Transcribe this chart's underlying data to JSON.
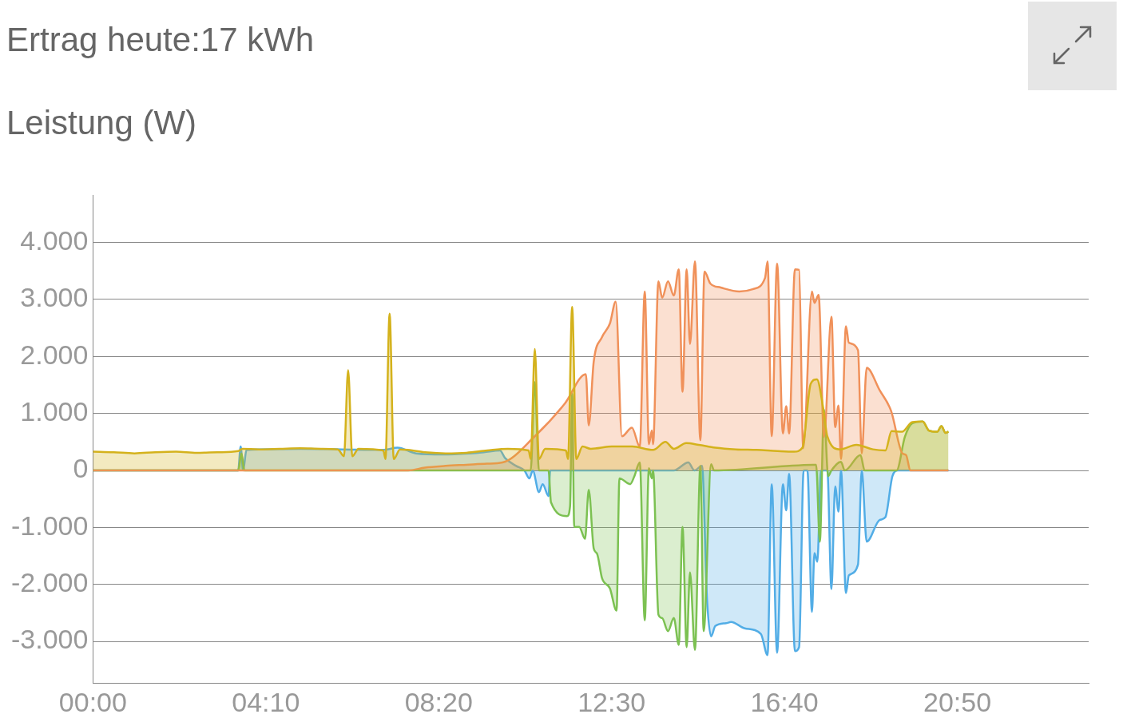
{
  "chart_data": {
    "type": "area",
    "title": "Ertrag heute:17 kWh",
    "subtitle": "Leistung (W)",
    "xlim": [
      0,
      24
    ],
    "xticks": [
      {
        "value": 0,
        "label": "00:00"
      },
      {
        "value": 4.1667,
        "label": "04:10"
      },
      {
        "value": 8.3333,
        "label": "08:20"
      },
      {
        "value": 12.5,
        "label": "12:30"
      },
      {
        "value": 16.6667,
        "label": "16:40"
      },
      {
        "value": 20.8333,
        "label": "20:50"
      }
    ],
    "ylim": [
      -3730,
      4830
    ],
    "yticks": [
      {
        "value": -3000,
        "label": "-3.000"
      },
      {
        "value": -2000,
        "label": "-2.000"
      },
      {
        "value": -1000,
        "label": "-1.000"
      },
      0,
      {
        "value": 1000,
        "label": "1.000"
      },
      {
        "value": 2000,
        "label": "2.000"
      },
      {
        "value": 3000,
        "label": "3.000"
      },
      {
        "value": 4000,
        "label": "4.000"
      }
    ],
    "grid": "y",
    "legend": false,
    "series": [
      {
        "color": "#d4b21c",
        "x": [
          0,
          0.5,
          1,
          1.5,
          2,
          2.5,
          3,
          3.5,
          3.6,
          4,
          4.5,
          5,
          5.5,
          5.9,
          6.05,
          6.15,
          6.25,
          6.4,
          7,
          7.05,
          7.15,
          7.25,
          7.4,
          8,
          8.5,
          9,
          9.5,
          10,
          10.5,
          10.55,
          10.65,
          10.75,
          10.9,
          11.4,
          11.45,
          11.55,
          11.65,
          11.8,
          12,
          12.5,
          13,
          13.5,
          13.8,
          14,
          14.3,
          14.6,
          15,
          15.5,
          16,
          16.5,
          16.9,
          17.1,
          17.3,
          17.45,
          17.6,
          17.7,
          18,
          18.4,
          18.8,
          19.1,
          19.25,
          19.5,
          19.75,
          20,
          20.15,
          20.35,
          20.45,
          20.55,
          20.62
        ],
        "values": [
          330,
          320,
          300,
          320,
          330,
          310,
          320,
          340,
          380,
          370,
          380,
          390,
          380,
          370,
          250,
          1760,
          250,
          380,
          350,
          200,
          2750,
          200,
          370,
          320,
          300,
          310,
          350,
          380,
          350,
          200,
          2130,
          200,
          380,
          350,
          200,
          2870,
          200,
          420,
          380,
          420,
          420,
          360,
          500,
          380,
          480,
          450,
          400,
          370,
          360,
          340,
          330,
          400,
          1520,
          1600,
          1100,
          600,
          370,
          450,
          370,
          350,
          690,
          680,
          850,
          860,
          700,
          680,
          780,
          660,
          680
        ]
      },
      {
        "color": "#f0915a",
        "x": [
          0,
          7.6,
          8,
          8.5,
          9,
          9.5,
          9.87,
          10.65,
          11.37,
          11.88,
          11.95,
          12.07,
          12.27,
          12.46,
          12.6,
          12.75,
          12.99,
          13.18,
          13.3,
          13.4,
          13.47,
          13.5,
          13.63,
          13.72,
          13.86,
          14.0,
          14.12,
          14.21,
          14.31,
          14.39,
          14.51,
          14.64,
          14.74,
          14.88,
          15.13,
          15.58,
          15.9,
          16.2,
          16.26,
          16.36,
          16.49,
          16.63,
          16.71,
          16.78,
          16.92,
          17.02,
          17.12,
          17.33,
          17.39,
          17.49,
          17.62,
          17.8,
          17.89,
          17.97,
          18.03,
          18.15,
          18.22,
          18.44,
          18.53,
          18.65,
          18.96,
          19.24,
          19.51,
          19.6,
          19.7,
          20.62
        ],
        "values": [
          0,
          0,
          50,
          80,
          100,
          120,
          140,
          600,
          1170,
          1690,
          790,
          1910,
          2340,
          2580,
          2960,
          600,
          750,
          420,
          3140,
          460,
          700,
          460,
          3320,
          3030,
          3320,
          3070,
          3530,
          1380,
          3530,
          2220,
          3670,
          530,
          3490,
          3280,
          3210,
          3140,
          3180,
          3380,
          3670,
          600,
          3630,
          650,
          1130,
          650,
          3530,
          3520,
          390,
          3140,
          2940,
          3080,
          590,
          2700,
          760,
          1140,
          200,
          2530,
          2240,
          2110,
          300,
          1800,
          1410,
          1040,
          300,
          270,
          0,
          0
        ]
      },
      {
        "color": "#7cc152",
        "x": [
          0,
          3.5,
          3.58,
          3.65,
          10.55,
          10.65,
          10.75,
          10.98,
          11.04,
          11.43,
          11.5,
          11.55,
          11.6,
          11.72,
          11.86,
          11.95,
          12.07,
          12.15,
          12.27,
          12.46,
          12.62,
          12.69,
          12.95,
          13.05,
          13.18,
          13.3,
          13.4,
          13.47,
          13.5,
          13.63,
          13.72,
          13.86,
          14.0,
          14.12,
          14.21,
          14.31,
          14.39,
          14.51,
          14.64,
          14.72,
          14.9,
          14.97,
          17.43,
          17.52,
          17.62,
          17.72,
          17.8,
          18.03,
          18.12,
          18.5,
          18.6,
          19.37,
          19.57,
          19.75,
          20,
          20.15,
          20.35,
          20.45,
          20.55,
          20.62
        ],
        "values": [
          0,
          0,
          300,
          0,
          0,
          1550,
          0,
          0,
          -560,
          -800,
          -620,
          1350,
          -990,
          -990,
          -1200,
          -340,
          -1370,
          -1460,
          -1890,
          -2070,
          -2460,
          -140,
          -240,
          -100,
          140,
          -2630,
          40,
          -140,
          0,
          -2530,
          -2590,
          -2820,
          -2590,
          -3060,
          -990,
          -3100,
          -1790,
          -3150,
          80,
          -2820,
          110,
          0,
          100,
          -1250,
          1070,
          -100,
          0,
          150,
          0,
          270,
          0,
          0,
          590,
          830,
          860,
          700,
          680,
          780,
          660,
          680
        ]
      },
      {
        "color": "#52ade6",
        "x": [
          0,
          3.5,
          3.56,
          3.62,
          3.7,
          4,
          5,
          6,
          7,
          7.34,
          7.79,
          8.45,
          9.09,
          9.42,
          9.81,
          9.93,
          10.2,
          10.4,
          10.52,
          10.6,
          10.75,
          10.84,
          10.98,
          11.02,
          12,
          13,
          14,
          14.35,
          14.5,
          14.68,
          14.8,
          14.9,
          15.0,
          15.26,
          15.38,
          15.71,
          16.1,
          16.26,
          16.36,
          16.49,
          16.63,
          16.71,
          16.78,
          16.92,
          17.02,
          17.13,
          17.22,
          17.33,
          17.39,
          17.46,
          17.55,
          17.7,
          17.8,
          17.89,
          17.97,
          18.03,
          18.15,
          18.22,
          18.44,
          18.53,
          18.65,
          18.96,
          19.1,
          19.27,
          19.4,
          20,
          20.62
        ],
        "values": [
          0,
          0,
          420,
          0,
          360,
          370,
          380,
          370,
          360,
          400,
          300,
          280,
          300,
          320,
          350,
          220,
          80,
          0,
          -140,
          0,
          -380,
          -240,
          -450,
          0,
          0,
          0,
          0,
          140,
          0,
          80,
          -2250,
          -2910,
          -2730,
          -2680,
          -2660,
          -2770,
          -2870,
          -3240,
          -240,
          -3200,
          -240,
          -700,
          -60,
          -3170,
          -3100,
          0,
          0,
          -2480,
          -1450,
          -1600,
          0,
          0,
          -2080,
          -280,
          -720,
          0,
          -2150,
          -1840,
          -1650,
          0,
          -1250,
          -870,
          -820,
          -100,
          0,
          0,
          0
        ]
      }
    ]
  }
}
